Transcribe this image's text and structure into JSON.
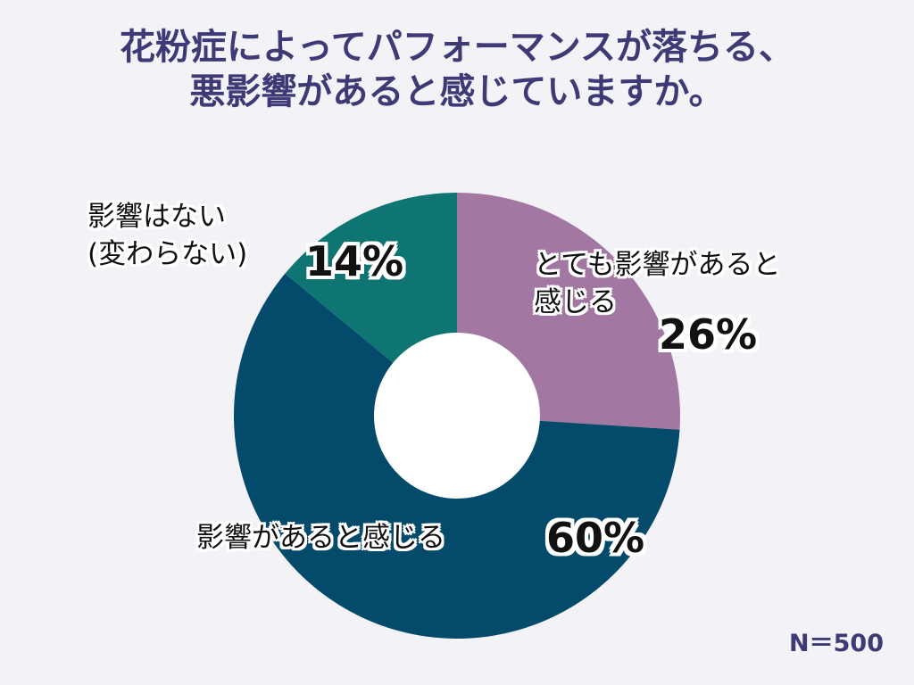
{
  "title_lines": [
    "花粉症によってパフォーマンスが落ちる、",
    "悪影響があると感じていますか。"
  ],
  "note": "N＝500",
  "colors": {
    "background": "#f3f2f7",
    "title": "#3d3a75",
    "slice_strong": "#a278a2",
    "slice_some": "#044b6b",
    "slice_none": "#0e7572"
  },
  "chart_data": {
    "type": "pie",
    "donut": true,
    "legend": "none",
    "slices": [
      {
        "label_lines": [
          "とても影響があると",
          "感じる"
        ],
        "value": 26,
        "value_label": "26%",
        "color": "#a278a2"
      },
      {
        "label_lines": [
          "影響があると感じる"
        ],
        "value": 60,
        "value_label": "60%",
        "color": "#044b6b"
      },
      {
        "label_lines": [
          "影響はない",
          "(変わらない)"
        ],
        "value": 14,
        "value_label": "14%",
        "color": "#0e7572"
      }
    ]
  }
}
